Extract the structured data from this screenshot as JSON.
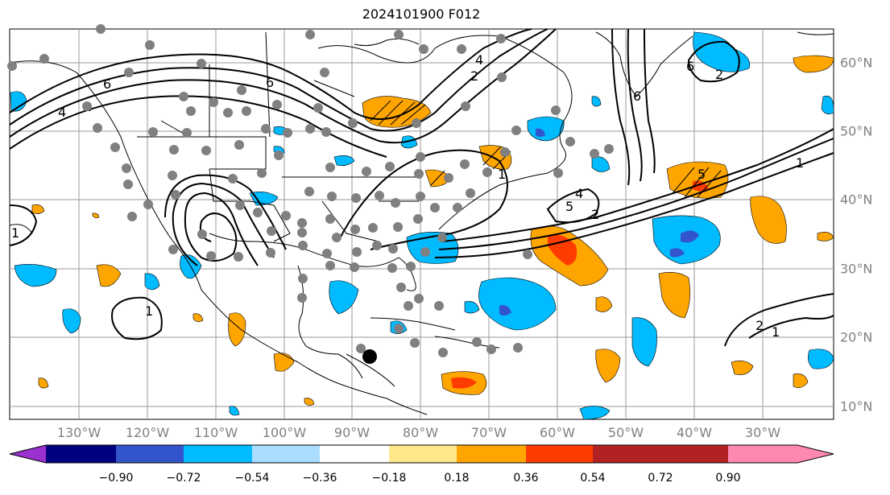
{
  "title": "2024101900 F012",
  "lon_labels": [
    {
      "text": "130°W",
      "lon": -130
    },
    {
      "text": "120°W",
      "lon": -120
    },
    {
      "text": "110°W",
      "lon": -110
    },
    {
      "text": "100°W",
      "lon": -100
    },
    {
      "text": "90°W",
      "lon": -90
    },
    {
      "text": "80°W",
      "lon": -80
    },
    {
      "text": "70°W",
      "lon": -70
    },
    {
      "text": "60°W",
      "lon": -60
    },
    {
      "text": "50°W",
      "lon": -50
    },
    {
      "text": "40°W",
      "lon": -40
    },
    {
      "text": "30°W",
      "lon": -30
    }
  ],
  "lat_labels": [
    {
      "text": "60°N",
      "lat": 60
    },
    {
      "text": "50°N",
      "lat": 50
    },
    {
      "text": "40°N",
      "lat": 40
    },
    {
      "text": "30°N",
      "lat": 30
    },
    {
      "text": "20°N",
      "lat": 20
    },
    {
      "text": "10°N",
      "lat": 10
    }
  ],
  "colorbar": {
    "colors": [
      "#9b30d0",
      "#00007f",
      "#3355cc",
      "#00bbff",
      "#aaddff",
      "#ffffff",
      "#ffe88a",
      "#ffa500",
      "#ff3c00",
      "#b22222",
      "#ff88b0"
    ],
    "ticks": [
      "−0.90",
      "−0.72",
      "−0.54",
      "−0.36",
      "−0.18",
      "0.18",
      "0.36",
      "0.54",
      "0.72",
      "0.90"
    ]
  },
  "contour_labels": [
    "6",
    "4",
    "2",
    "1",
    "5",
    "4",
    "2",
    "1",
    "6",
    "4",
    "2",
    "1",
    "6",
    "1",
    "5",
    "6",
    "2",
    "1",
    "2"
  ],
  "colors": {
    "positive": "#ffa500",
    "negative": "#00bbff",
    "strong_positive": "#ff3c00",
    "strong_negative": "#3355cc"
  }
}
